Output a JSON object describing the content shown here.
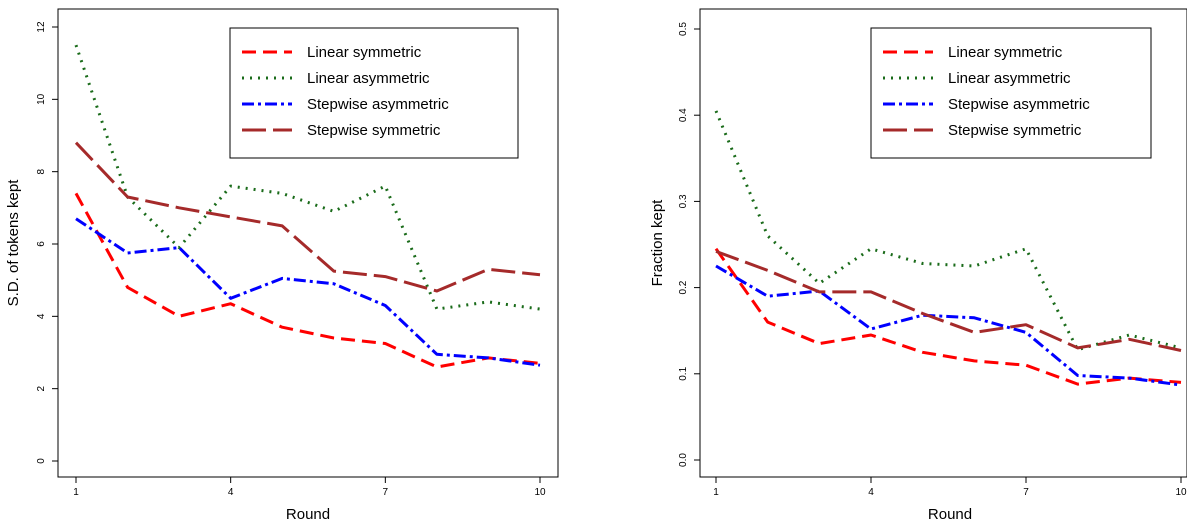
{
  "chart_data": [
    {
      "type": "line",
      "xlabel": "Round",
      "ylabel": "S.D. of tokens kept",
      "xlim": [
        1,
        10
      ],
      "ylim": [
        0,
        12
      ],
      "x_ticks": [
        "1",
        "4",
        "7",
        "10"
      ],
      "y_ticks": [
        "0",
        "2",
        "4",
        "6",
        "8",
        "10",
        "12"
      ],
      "grid": false,
      "legend_position": "top-right",
      "x": [
        1,
        2,
        3,
        4,
        5,
        6,
        7,
        8,
        9,
        10
      ],
      "series": [
        {
          "name": "Linear symmetric",
          "color": "#ff0000",
          "dash": "14 7",
          "values": [
            7.4,
            4.8,
            4.0,
            4.35,
            3.7,
            3.4,
            3.25,
            2.6,
            2.85,
            2.7
          ]
        },
        {
          "name": "Linear asymmetric",
          "color": "#1a6b1a",
          "dash": "2 6",
          "values": [
            11.5,
            7.3,
            5.9,
            7.6,
            7.4,
            6.9,
            7.6,
            4.2,
            4.4,
            4.2
          ]
        },
        {
          "name": "Stepwise asymmetric",
          "color": "#0000ff",
          "dash": "12 4 3 4",
          "values": [
            6.7,
            5.75,
            5.9,
            4.5,
            5.05,
            4.9,
            4.3,
            2.95,
            2.85,
            2.65
          ]
        },
        {
          "name": "Stepwise symmetric",
          "color": "#a52a2a",
          "dash": "24 7",
          "values": [
            8.8,
            7.3,
            7.0,
            6.75,
            6.5,
            5.25,
            5.1,
            4.7,
            5.3,
            5.15
          ]
        }
      ]
    },
    {
      "type": "line",
      "xlabel": "Round",
      "ylabel": "Fraction kept",
      "xlim": [
        1,
        10
      ],
      "ylim": [
        0,
        0.5
      ],
      "x_ticks": [
        "1",
        "4",
        "7",
        "10"
      ],
      "y_ticks": [
        "0.0",
        "0.1",
        "0.2",
        "0.3",
        "0.4",
        "0.5"
      ],
      "grid": false,
      "legend_position": "top-right",
      "x": [
        1,
        2,
        3,
        4,
        5,
        6,
        7,
        8,
        9,
        10
      ],
      "series": [
        {
          "name": "Linear symmetric",
          "color": "#ff0000",
          "dash": "14 7",
          "values": [
            0.245,
            0.16,
            0.135,
            0.145,
            0.125,
            0.115,
            0.11,
            0.088,
            0.095,
            0.09
          ]
        },
        {
          "name": "Linear asymmetric",
          "color": "#1a6b1a",
          "dash": "2 6",
          "values": [
            0.405,
            0.26,
            0.205,
            0.245,
            0.228,
            0.225,
            0.245,
            0.128,
            0.145,
            0.13
          ]
        },
        {
          "name": "Stepwise asymmetric",
          "color": "#0000ff",
          "dash": "12 4 3 4",
          "values": [
            0.225,
            0.19,
            0.196,
            0.152,
            0.168,
            0.165,
            0.148,
            0.098,
            0.095,
            0.087
          ]
        },
        {
          "name": "Stepwise symmetric",
          "color": "#a52a2a",
          "dash": "24 7",
          "values": [
            0.242,
            0.22,
            0.195,
            0.195,
            0.17,
            0.148,
            0.157,
            0.13,
            0.14,
            0.127
          ]
        }
      ]
    }
  ]
}
